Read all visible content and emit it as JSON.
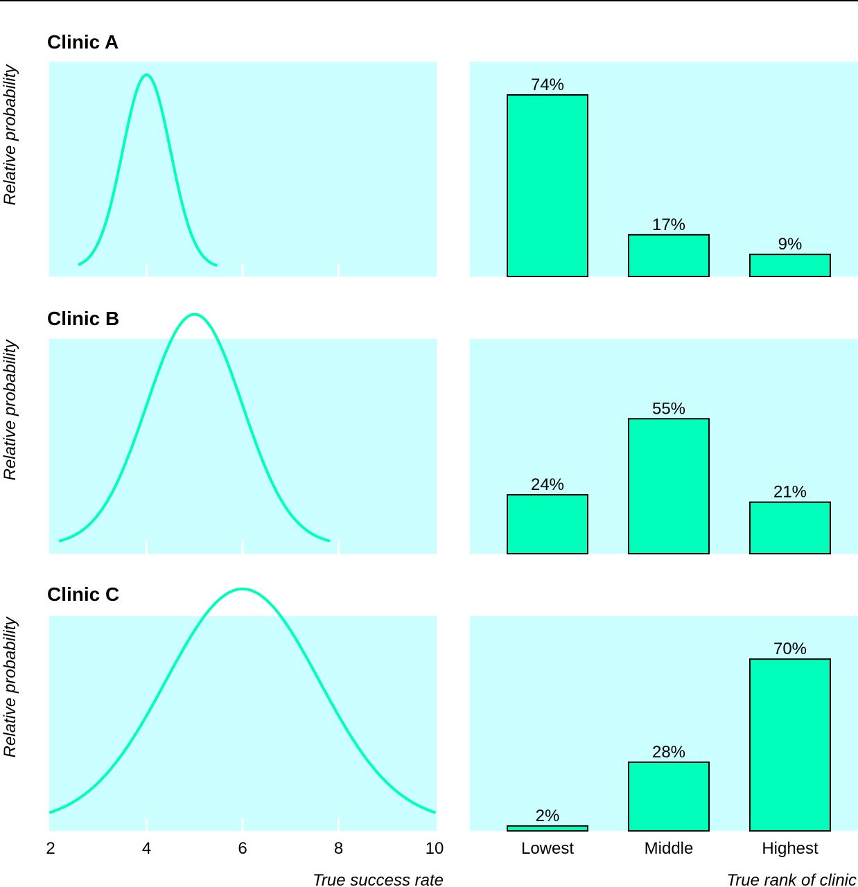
{
  "colors": {
    "panel_bg": "#ccffff",
    "series": "#00ffbb",
    "bar_stroke": "#000000",
    "tick_mark": "#ffffff"
  },
  "density_axis": {
    "xlabel": "True success rate",
    "ticks": [
      "2",
      "4",
      "6",
      "8",
      "10"
    ],
    "xlim": [
      2,
      10
    ]
  },
  "rank_axis": {
    "xlabel": "True rank of clinic",
    "categories": [
      "Lowest",
      "Middle",
      "Highest"
    ]
  },
  "ylabel": "Relative probability",
  "chart_data": [
    {
      "title": "Clinic A",
      "density": {
        "type": "line",
        "mean": 4,
        "sd": 0.5,
        "xrange": [
          2.6,
          5.45
        ],
        "relative_peak": 1.0
      },
      "rank": {
        "type": "bar",
        "categories": [
          "Lowest",
          "Middle",
          "Highest"
        ],
        "values": [
          74,
          17,
          9
        ],
        "labels": [
          "74%",
          "17%",
          "9%"
        ]
      }
    },
    {
      "title": "Clinic B",
      "density": {
        "type": "line",
        "mean": 5,
        "sd": 1.0,
        "xrange": [
          2.2,
          7.8
        ],
        "relative_peak": 0.5
      },
      "rank": {
        "type": "bar",
        "categories": [
          "Lowest",
          "Middle",
          "Highest"
        ],
        "values": [
          24,
          55,
          21
        ],
        "labels": [
          "24%",
          "55%",
          "21%"
        ]
      }
    },
    {
      "title": "Clinic C",
      "density": {
        "type": "line",
        "mean": 6,
        "sd": 1.6,
        "xrange": [
          2,
          10
        ],
        "relative_peak": 0.32
      },
      "rank": {
        "type": "bar",
        "categories": [
          "Lowest",
          "Middle",
          "Highest"
        ],
        "values": [
          2,
          28,
          70
        ],
        "labels": [
          "2%",
          "28%",
          "70%"
        ]
      }
    }
  ]
}
